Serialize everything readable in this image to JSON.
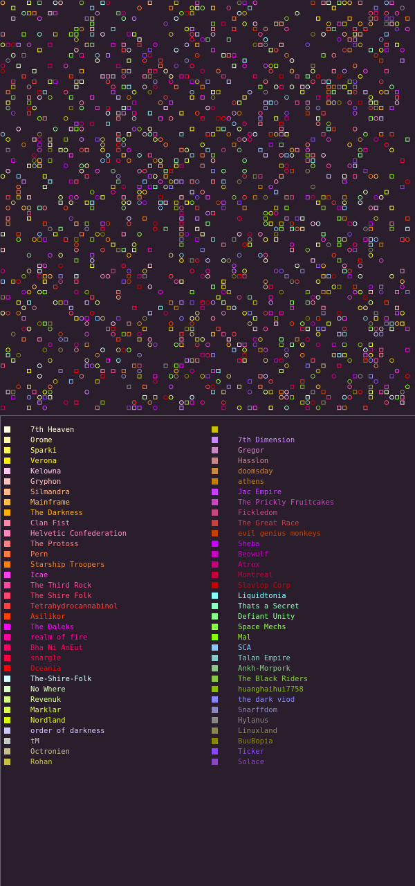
{
  "map": {
    "background": "#2a1d2c",
    "legend_background": "#2a1d2c",
    "divider_color": "#6b6470"
  },
  "legend": {
    "left": [
      {
        "label": "7th Heaven",
        "color": "#fffde0"
      },
      {
        "label": "Orome",
        "color": "#fff7a8"
      },
      {
        "label": "Sparki",
        "color": "#fff35a"
      },
      {
        "label": "Verona",
        "color": "#fff200"
      },
      {
        "label": "Kelowna",
        "color": "#ffc8f0"
      },
      {
        "label": "Gryphon",
        "color": "#ffc0c0"
      },
      {
        "label": "Silmandra",
        "color": "#ffb888"
      },
      {
        "label": "Mainframe",
        "color": "#ffc040"
      },
      {
        "label": "The Darkness",
        "color": "#ffb000"
      },
      {
        "label": "Clan Fist",
        "color": "#ff88a8"
      },
      {
        "label": "Helvetic Confederation",
        "color": "#ff88c0"
      },
      {
        "label": "The Protoss",
        "color": "#ff8080"
      },
      {
        "label": "Pern",
        "color": "#ff7840"
      },
      {
        "label": "Starship Troopers",
        "color": "#ff8000"
      },
      {
        "label": "Icae",
        "color": "#ff40f0"
      },
      {
        "label": "The Third Rock",
        "color": "#ff48a0"
      },
      {
        "label": "The Shire Folk",
        "color": "#ff4870"
      },
      {
        "label": "Tetrahydrocannabinol",
        "color": "#ff4040"
      },
      {
        "label": "Asilikor",
        "color": "#ff4000"
      },
      {
        "label": "The Daleks",
        "color": "#ff00ff"
      },
      {
        "label": "realm of fire",
        "color": "#ff00a0"
      },
      {
        "label": "Bha Ni AnEut",
        "color": "#ff0060"
      },
      {
        "label": "snargle",
        "color": "#ff0040"
      },
      {
        "label": "Oceania",
        "color": "#ff0000"
      },
      {
        "label": "The-Shire-Folk",
        "color": "#d8fff8"
      },
      {
        "label": "No Where",
        "color": "#d8ffc0"
      },
      {
        "label": "Revenuk",
        "color": "#d8ff80"
      },
      {
        "label": "Marklar",
        "color": "#d8ff40"
      },
      {
        "label": "Nordland",
        "color": "#d8ff00"
      },
      {
        "label": "order of darkness",
        "color": "#c8c8ff"
      },
      {
        "label": "tM",
        "color": "#c8c8c8"
      },
      {
        "label": "Octronien",
        "color": "#c8c088"
      },
      {
        "label": "Rohan",
        "color": "#c8c040"
      }
    ],
    "right": [
      {
        "label": "",
        "color": "#c8c000"
      },
      {
        "label": "7th Dimension",
        "color": "#c888ff"
      },
      {
        "label": "Gregor",
        "color": "#c888c0"
      },
      {
        "label": "Hasslon",
        "color": "#c88888"
      },
      {
        "label": "doomsday",
        "color": "#c88840"
      },
      {
        "label": "athens",
        "color": "#c88000"
      },
      {
        "label": "Jac Empire",
        "color": "#c840ff"
      },
      {
        "label": "The Prickly Fruitcakes",
        "color": "#c848c0"
      },
      {
        "label": "Fickledom",
        "color": "#c84880"
      },
      {
        "label": "The Great Race",
        "color": "#c84040"
      },
      {
        "label": "evil genius monkeys",
        "color": "#c84000"
      },
      {
        "label": "Sheba",
        "color": "#c800ff"
      },
      {
        "label": "Beowulf",
        "color": "#c800c0"
      },
      {
        "label": "Atrox",
        "color": "#c80080"
      },
      {
        "label": "Montreal",
        "color": "#c80040"
      },
      {
        "label": "Slavlop Corp",
        "color": "#c80000"
      },
      {
        "label": "Liquidtonia",
        "color": "#88ffff"
      },
      {
        "label": "Thats a Secret",
        "color": "#88ffc0"
      },
      {
        "label": "Defiant Unity",
        "color": "#88ff88"
      },
      {
        "label": "Space Mechs",
        "color": "#88ff40"
      },
      {
        "label": "Mal",
        "color": "#88ff00"
      },
      {
        "label": "SCA",
        "color": "#88c8ff"
      },
      {
        "label": "Talan Empire",
        "color": "#88c8c8"
      },
      {
        "label": "Ankh-Morpork",
        "color": "#88c888"
      },
      {
        "label": "The Black Riders",
        "color": "#88c840"
      },
      {
        "label": "huanghaihui7758",
        "color": "#88c000"
      },
      {
        "label": "the dark viod",
        "color": "#8888ff"
      },
      {
        "label": "Snarffdom",
        "color": "#8888c0"
      },
      {
        "label": "Hylanus",
        "color": "#888888"
      },
      {
        "label": "Linuxland",
        "color": "#888850"
      },
      {
        "label": "BuuBopia",
        "color": "#888800"
      },
      {
        "label": "Ticker",
        "color": "#8848ff"
      },
      {
        "label": "Solace",
        "color": "#8848c0"
      }
    ]
  }
}
